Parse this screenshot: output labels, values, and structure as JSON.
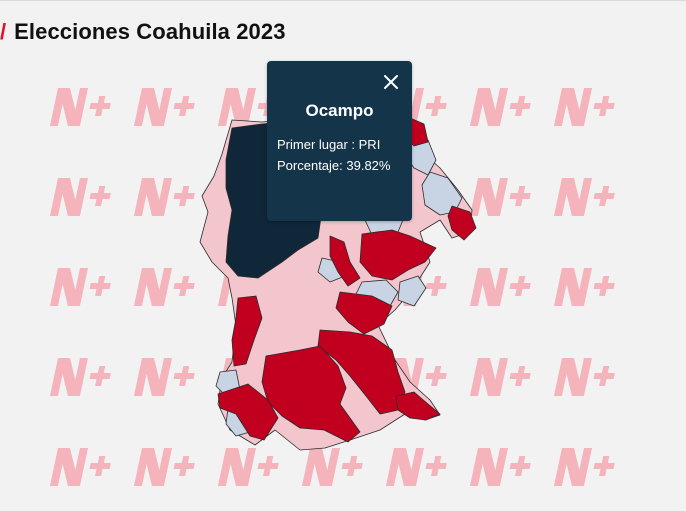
{
  "header": {
    "slash": "/",
    "title": "Elecciones Coahuila 2023"
  },
  "colors": {
    "accent": "#e0112b",
    "winner_dark": "#0f2739",
    "pri": "#c1001f",
    "pri_light": "#f2c6cc",
    "other": "#c8d3e3",
    "tooltip_bg": "#14344a"
  },
  "watermark": {
    "mark": "N+",
    "color": "#f5b3bc"
  },
  "tooltip": {
    "close_icon": "close-icon",
    "municipality": "Ocampo",
    "first_place_label": "Primer lugar : ",
    "first_place_value": "PRI",
    "percentage_label": "Porcentaje: ",
    "percentage_value": "39.82%"
  }
}
